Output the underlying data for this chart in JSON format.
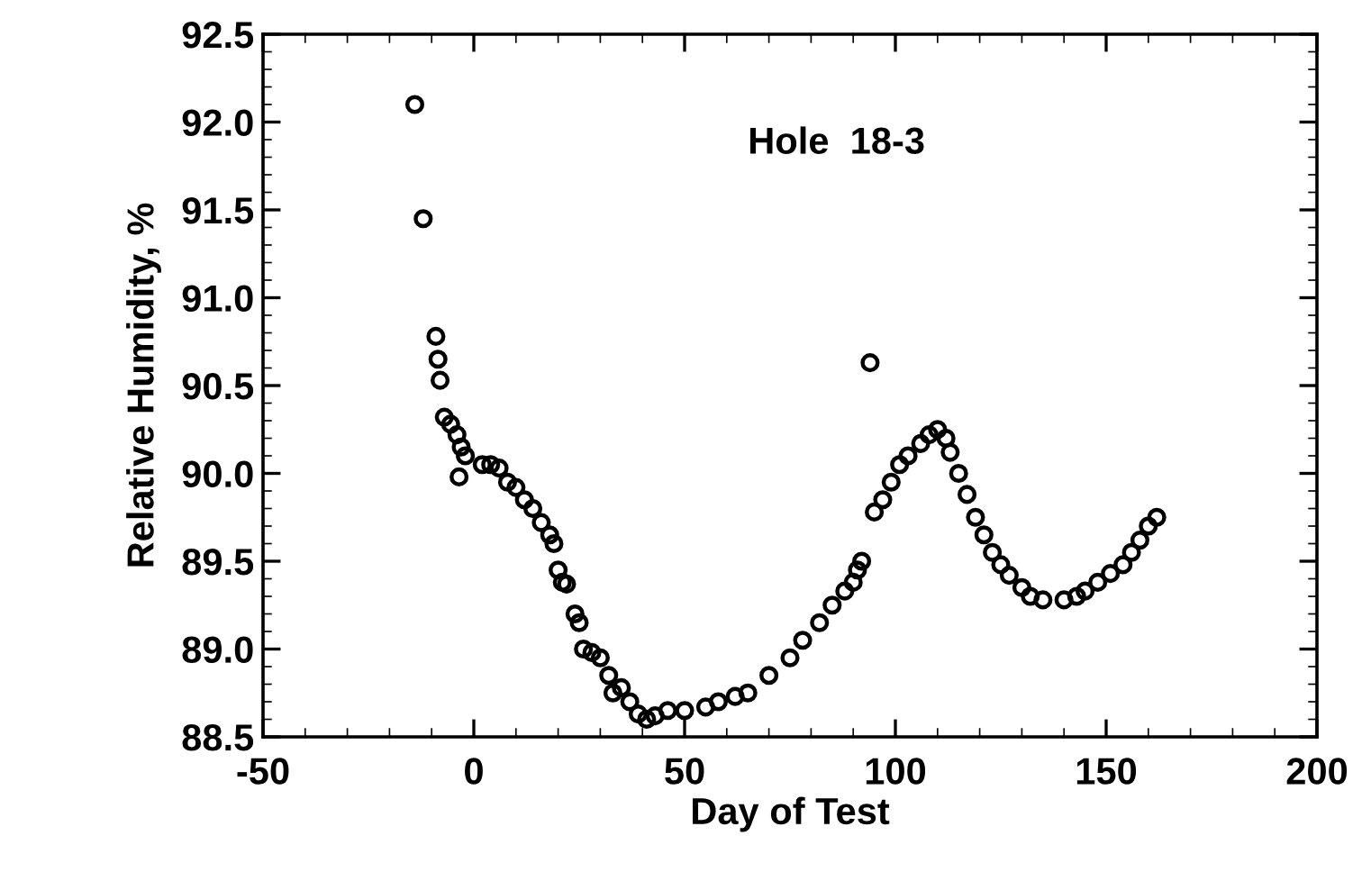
{
  "chart_data": {
    "type": "scatter",
    "xlabel": "Day of Test",
    "ylabel": "Relative Humidity, %",
    "annotations": [
      "Hole  18-3"
    ],
    "xlim": [
      -50,
      200
    ],
    "xticks": [
      -50,
      0,
      50,
      100,
      150,
      200
    ],
    "ylim": [
      88.5,
      92.5
    ],
    "yticks": [
      {
        "value": 88.5,
        "label": "88.5"
      },
      {
        "value": 89.0,
        "label": "89.0"
      },
      {
        "value": 89.5,
        "label": "89.5"
      },
      {
        "value": 90.0,
        "label": "90.0"
      },
      {
        "value": 90.5,
        "label": "90.5"
      },
      {
        "value": 91.0,
        "label": "91.0"
      },
      {
        "value": 91.5,
        "label": "91.5"
      },
      {
        "value": 92.0,
        "label": "92.0"
      },
      {
        "value": 92.5,
        "label": "92.5"
      }
    ],
    "grid": false,
    "marker": "circle",
    "series": [
      {
        "color": "#000000",
        "x": [
          -14,
          -12,
          -9,
          -8.5,
          -8,
          -7,
          -5.5,
          -4,
          -3,
          -2,
          -3.5,
          2,
          4,
          6,
          8,
          10,
          12,
          14,
          16,
          18,
          19,
          20,
          21,
          22,
          24,
          25,
          26,
          28,
          30,
          32,
          33,
          35,
          37,
          39,
          41,
          43,
          46,
          50,
          55,
          58,
          62,
          65,
          70,
          75,
          78,
          82,
          85,
          88,
          90,
          91,
          92,
          94,
          95,
          97,
          99,
          101,
          103,
          106,
          108,
          110,
          112,
          113,
          115,
          117,
          119,
          121,
          123,
          125,
          127,
          130,
          132,
          135,
          140,
          143,
          145,
          148,
          151,
          154,
          156,
          158,
          160,
          162
        ],
        "values": [
          92.1,
          91.45,
          90.78,
          90.65,
          90.53,
          90.32,
          90.28,
          90.22,
          90.15,
          90.1,
          89.98,
          90.05,
          90.05,
          90.03,
          89.95,
          89.92,
          89.85,
          89.8,
          89.72,
          89.65,
          89.6,
          89.45,
          89.38,
          89.37,
          89.2,
          89.15,
          89.0,
          88.98,
          88.95,
          88.85,
          88.75,
          88.78,
          88.7,
          88.63,
          88.6,
          88.62,
          88.65,
          88.65,
          88.67,
          88.7,
          88.73,
          88.75,
          88.85,
          88.95,
          89.05,
          89.15,
          89.25,
          89.33,
          89.38,
          89.45,
          89.5,
          90.63,
          89.78,
          89.85,
          89.95,
          90.05,
          90.1,
          90.17,
          90.22,
          90.25,
          90.2,
          90.12,
          90.0,
          89.88,
          89.75,
          89.65,
          89.55,
          89.48,
          89.42,
          89.35,
          89.3,
          89.28,
          89.28,
          89.3,
          89.33,
          89.38,
          89.43,
          89.48,
          89.55,
          89.62,
          89.7,
          89.75
        ]
      }
    ]
  }
}
